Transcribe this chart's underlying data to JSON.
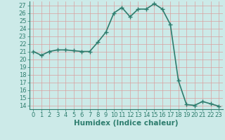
{
  "x": [
    0,
    1,
    2,
    3,
    4,
    5,
    6,
    7,
    8,
    9,
    10,
    11,
    12,
    13,
    14,
    15,
    16,
    17,
    18,
    19,
    20,
    21,
    22,
    23
  ],
  "y": [
    21.0,
    20.5,
    21.0,
    21.2,
    21.2,
    21.1,
    21.0,
    21.0,
    22.2,
    23.5,
    26.0,
    26.7,
    25.5,
    26.5,
    26.5,
    27.2,
    26.5,
    24.5,
    17.2,
    14.1,
    14.0,
    14.5,
    14.2,
    13.9
  ],
  "line_color": "#2e7d6e",
  "marker": "+",
  "marker_size": 4,
  "xlabel": "Humidex (Indice chaleur)",
  "xlim": [
    -0.5,
    23.5
  ],
  "ylim": [
    13.5,
    27.5
  ],
  "yticks": [
    14,
    15,
    16,
    17,
    18,
    19,
    20,
    21,
    22,
    23,
    24,
    25,
    26,
    27
  ],
  "xticks": [
    0,
    1,
    2,
    3,
    4,
    5,
    6,
    7,
    8,
    9,
    10,
    11,
    12,
    13,
    14,
    15,
    16,
    17,
    18,
    19,
    20,
    21,
    22,
    23
  ],
  "bg_color": "#cceae8",
  "grid_color": "#b0d8d4",
  "tick_color": "#2e7d6e",
  "label_color": "#2e7d6e",
  "spine_color": "#2e7d6e",
  "xlabel_fontsize": 7.5,
  "tick_fontsize": 6,
  "linewidth": 1.2
}
